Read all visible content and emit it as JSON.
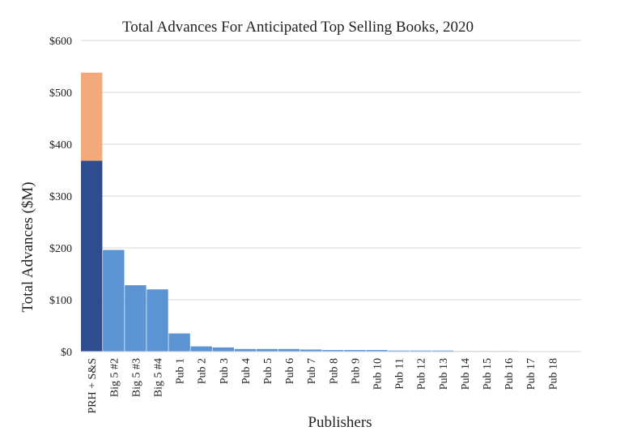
{
  "chart_data": {
    "type": "bar",
    "stacked": true,
    "title": "Total Advances For Anticipated Top Selling Books, 2020",
    "xlabel": "Publishers",
    "ylabel": "Total Advances ($M)",
    "ylim": [
      0,
      600
    ],
    "yticks": [
      0,
      100,
      200,
      300,
      400,
      500,
      600
    ],
    "ytick_labels": [
      "$0",
      "$100",
      "$200",
      "$300",
      "$400",
      "$500",
      "$600"
    ],
    "grid": true,
    "legend": "none",
    "categories": [
      "PRH + S&S",
      "Big 5 #2",
      "Big 5 #3",
      "Big 5 #4",
      "Pub 1",
      "Pub 2",
      "Pub 3",
      "Pub 4",
      "Pub 5",
      "Pub 6",
      "Pub 7",
      "Pub 8",
      "Pub 9",
      "Pub 10",
      "Pub 11",
      "Pub 12",
      "Pub 13",
      "Pub 14",
      "Pub 15",
      "Pub 16",
      "Pub 17",
      "Pub 18"
    ],
    "series": [
      {
        "color": "#2e4d8f",
        "values": [
          368,
          0,
          0,
          0,
          0,
          0,
          0,
          0,
          0,
          0,
          0,
          0,
          0,
          0,
          0,
          0,
          0,
          0,
          0,
          0,
          0,
          0
        ]
      },
      {
        "color": "#f4a97a",
        "values": [
          170,
          0,
          0,
          0,
          0,
          0,
          0,
          0,
          0,
          0,
          0,
          0,
          0,
          0,
          0,
          0,
          0,
          0,
          0,
          0,
          0,
          0
        ]
      },
      {
        "color": "#5b93d3",
        "values": [
          0,
          196,
          128,
          120,
          35,
          10,
          8,
          5,
          5,
          5,
          4,
          3,
          3,
          3,
          2,
          2,
          2,
          1,
          1,
          1,
          0.5,
          0.5
        ]
      }
    ]
  }
}
